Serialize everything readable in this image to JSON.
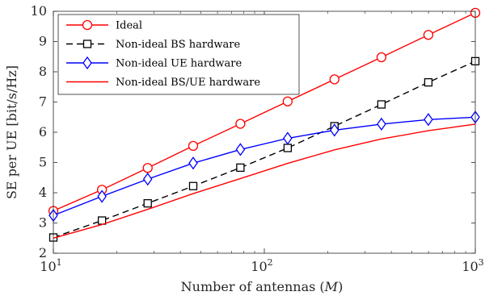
{
  "chart_data": {
    "type": "line",
    "title": "",
    "xlabel": "Number of antennas (",
    "xlabel_symbol": "M",
    "xlabel_close": ")",
    "ylabel": "SE per UE [bit/s/Hz]",
    "xscale": "log",
    "xlim": [
      10,
      1000
    ],
    "ylim": [
      2,
      10
    ],
    "x_ticks": [
      {
        "value": 10,
        "base": "10",
        "exp": "1"
      },
      {
        "value": 100,
        "base": "10",
        "exp": "2"
      },
      {
        "value": 1000,
        "base": "10",
        "exp": "3"
      }
    ],
    "y_ticks": [
      "2",
      "3",
      "4",
      "5",
      "6",
      "7",
      "8",
      "9",
      "10"
    ],
    "grid": false,
    "legend_position": "top-left",
    "series": [
      {
        "name": "Ideal",
        "color": "#ff0000",
        "dash": "solid",
        "marker": "circle",
        "x": [
          10,
          17,
          28,
          46,
          77,
          129,
          215,
          359,
          599,
          1000
        ],
        "y": [
          3.4,
          4.1,
          4.82,
          5.55,
          6.28,
          7.02,
          7.75,
          8.48,
          9.22,
          9.95
        ]
      },
      {
        "name": "Non-ideal BS hardware",
        "color": "#000000",
        "dash": "dashed",
        "marker": "square",
        "x": [
          10,
          17,
          28,
          46,
          77,
          129,
          215,
          359,
          599,
          1000
        ],
        "y": [
          2.52,
          3.08,
          3.65,
          4.22,
          4.83,
          5.48,
          6.2,
          6.92,
          7.65,
          8.35
        ]
      },
      {
        "name": "Non-ideal UE hardware",
        "color": "#0000ff",
        "dash": "solid",
        "marker": "diamond",
        "x": [
          10,
          17,
          28,
          46,
          77,
          129,
          215,
          359,
          599,
          1000
        ],
        "y": [
          3.25,
          3.88,
          4.45,
          4.98,
          5.43,
          5.8,
          6.07,
          6.27,
          6.42,
          6.5
        ]
      },
      {
        "name": "Non-ideal BS/UE hardware",
        "color": "#ff0000",
        "dash": "solid",
        "marker": "none",
        "x": [
          10,
          17,
          28,
          46,
          77,
          129,
          215,
          359,
          599,
          1000
        ],
        "y": [
          2.5,
          2.95,
          3.45,
          3.97,
          4.47,
          4.97,
          5.42,
          5.78,
          6.05,
          6.27
        ]
      }
    ]
  }
}
